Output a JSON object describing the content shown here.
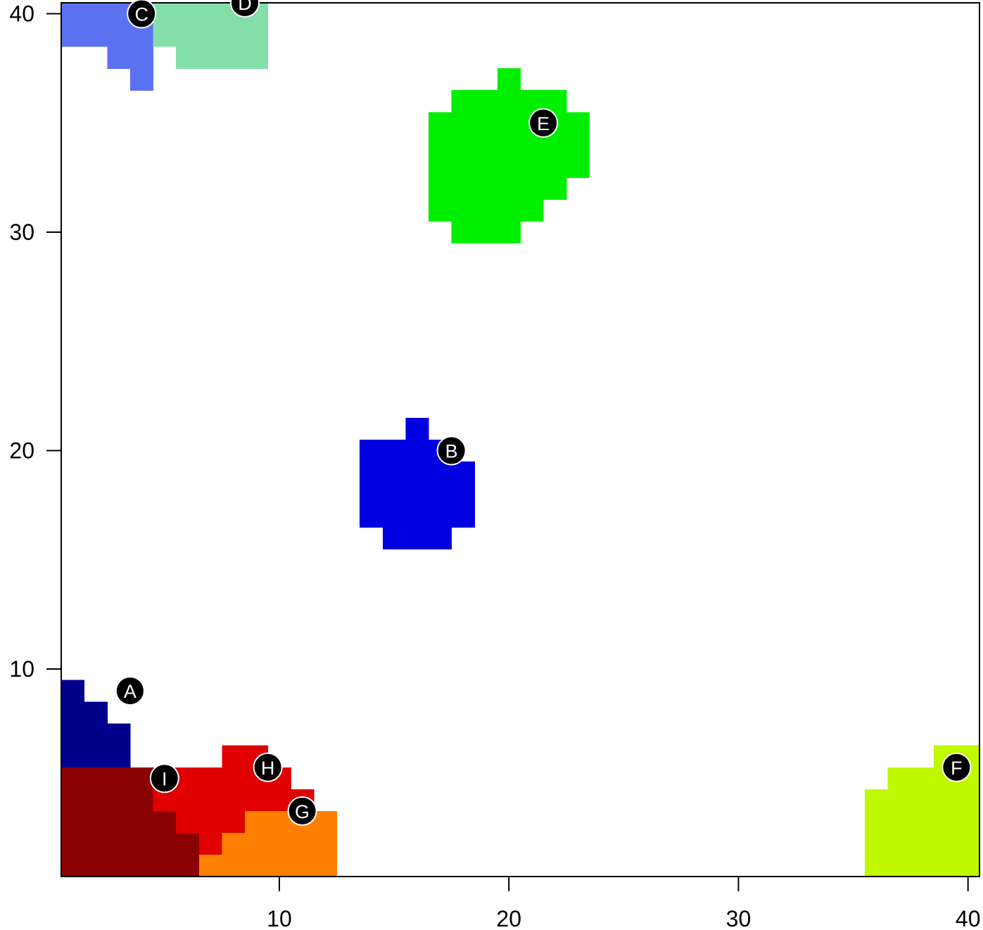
{
  "chart_data": {
    "type": "heatmap",
    "title": "",
    "xlabel": "",
    "ylabel": "",
    "xlim": [
      0.5,
      40.5
    ],
    "ylim": [
      0.5,
      40.5
    ],
    "x_ticks": [
      10,
      20,
      30,
      40
    ],
    "y_ticks": [
      10,
      20,
      30,
      40
    ],
    "x_tick_labels": [
      "10",
      "20",
      "30",
      "40"
    ],
    "y_tick_labels": [
      "10",
      "20",
      "30",
      "40"
    ],
    "grid": false,
    "legend": "none",
    "background": "#ffffff",
    "regions": [
      {
        "label": "A",
        "color": "#00008b",
        "rects": [
          [
            0.5,
            3.5,
            5.5,
            7.5
          ],
          [
            0.5,
            2.5,
            7.5,
            8.5
          ],
          [
            0.5,
            1.5,
            8.5,
            9.5
          ]
        ]
      },
      {
        "label": "I",
        "color": "#8b0000",
        "rects": [
          [
            0.5,
            4.5,
            0.5,
            5.5
          ],
          [
            4.5,
            5.5,
            0.5,
            3.5
          ],
          [
            5.5,
            6.5,
            0.5,
            3.5
          ]
        ]
      },
      {
        "label": "H",
        "color": "#e00000",
        "rects": [
          [
            4.5,
            7.5,
            3.5,
            5.5
          ],
          [
            5.5,
            7.5,
            2.5,
            3.5
          ],
          [
            6.5,
            7.5,
            1.5,
            2.5
          ],
          [
            7.5,
            9.5,
            2.5,
            6.5
          ],
          [
            9.5,
            10.5,
            3.5,
            5.5
          ],
          [
            10.5,
            11.5,
            3.5,
            4.5
          ]
        ]
      },
      {
        "label": "G",
        "color": "#ff7f00",
        "rects": [
          [
            6.5,
            7.5,
            0.5,
            1.5
          ],
          [
            7.5,
            8.5,
            0.5,
            2.5
          ],
          [
            8.5,
            12.5,
            0.5,
            3.5
          ]
        ]
      },
      {
        "label": "B",
        "color": "#0000e0",
        "rects": [
          [
            13.5,
            18.5,
            16.5,
            19.5
          ],
          [
            13.5,
            17.5,
            19.5,
            20.5
          ],
          [
            15.5,
            16.5,
            20.5,
            21.5
          ],
          [
            14.5,
            17.5,
            15.5,
            16.5
          ]
        ]
      },
      {
        "label": "E",
        "color": "#00ee00",
        "rects": [
          [
            16.5,
            23.5,
            32.5,
            35.5
          ],
          [
            17.5,
            22.5,
            35.5,
            36.5
          ],
          [
            19.5,
            20.5,
            36.5,
            37.5
          ],
          [
            16.5,
            22.5,
            31.5,
            32.5
          ],
          [
            16.5,
            21.5,
            30.5,
            31.5
          ],
          [
            17.5,
            20.5,
            29.5,
            30.5
          ]
        ]
      },
      {
        "label": "C",
        "color": "#5b72f2",
        "rects": [
          [
            0.5,
            4.5,
            38.5,
            40.5
          ],
          [
            2.5,
            4.5,
            37.5,
            38.5
          ],
          [
            3.5,
            4.5,
            36.5,
            37.5
          ]
        ]
      },
      {
        "label": "D",
        "color": "#84deaa",
        "rects": [
          [
            4.5,
            9.5,
            38.5,
            40.5
          ],
          [
            5.5,
            9.5,
            37.5,
            38.5
          ]
        ]
      },
      {
        "label": "F",
        "color": "#c0f800",
        "rects": [
          [
            35.5,
            40.5,
            0.5,
            4.5
          ],
          [
            36.5,
            40.5,
            4.5,
            5.5
          ],
          [
            38.5,
            40.5,
            5.5,
            6.5
          ]
        ]
      }
    ],
    "markers": [
      {
        "label": "A",
        "x": 3.5,
        "y": 9.0
      },
      {
        "label": "B",
        "x": 17.5,
        "y": 20.0
      },
      {
        "label": "C",
        "x": 4.0,
        "y": 40.0
      },
      {
        "label": "D",
        "x": 8.5,
        "y": 40.5
      },
      {
        "label": "E",
        "x": 21.5,
        "y": 35.0
      },
      {
        "label": "F",
        "x": 39.5,
        "y": 5.5
      },
      {
        "label": "G",
        "x": 11.0,
        "y": 3.5
      },
      {
        "label": "H",
        "x": 9.5,
        "y": 5.5
      },
      {
        "label": "I",
        "x": 5.0,
        "y": 5.0
      }
    ]
  }
}
